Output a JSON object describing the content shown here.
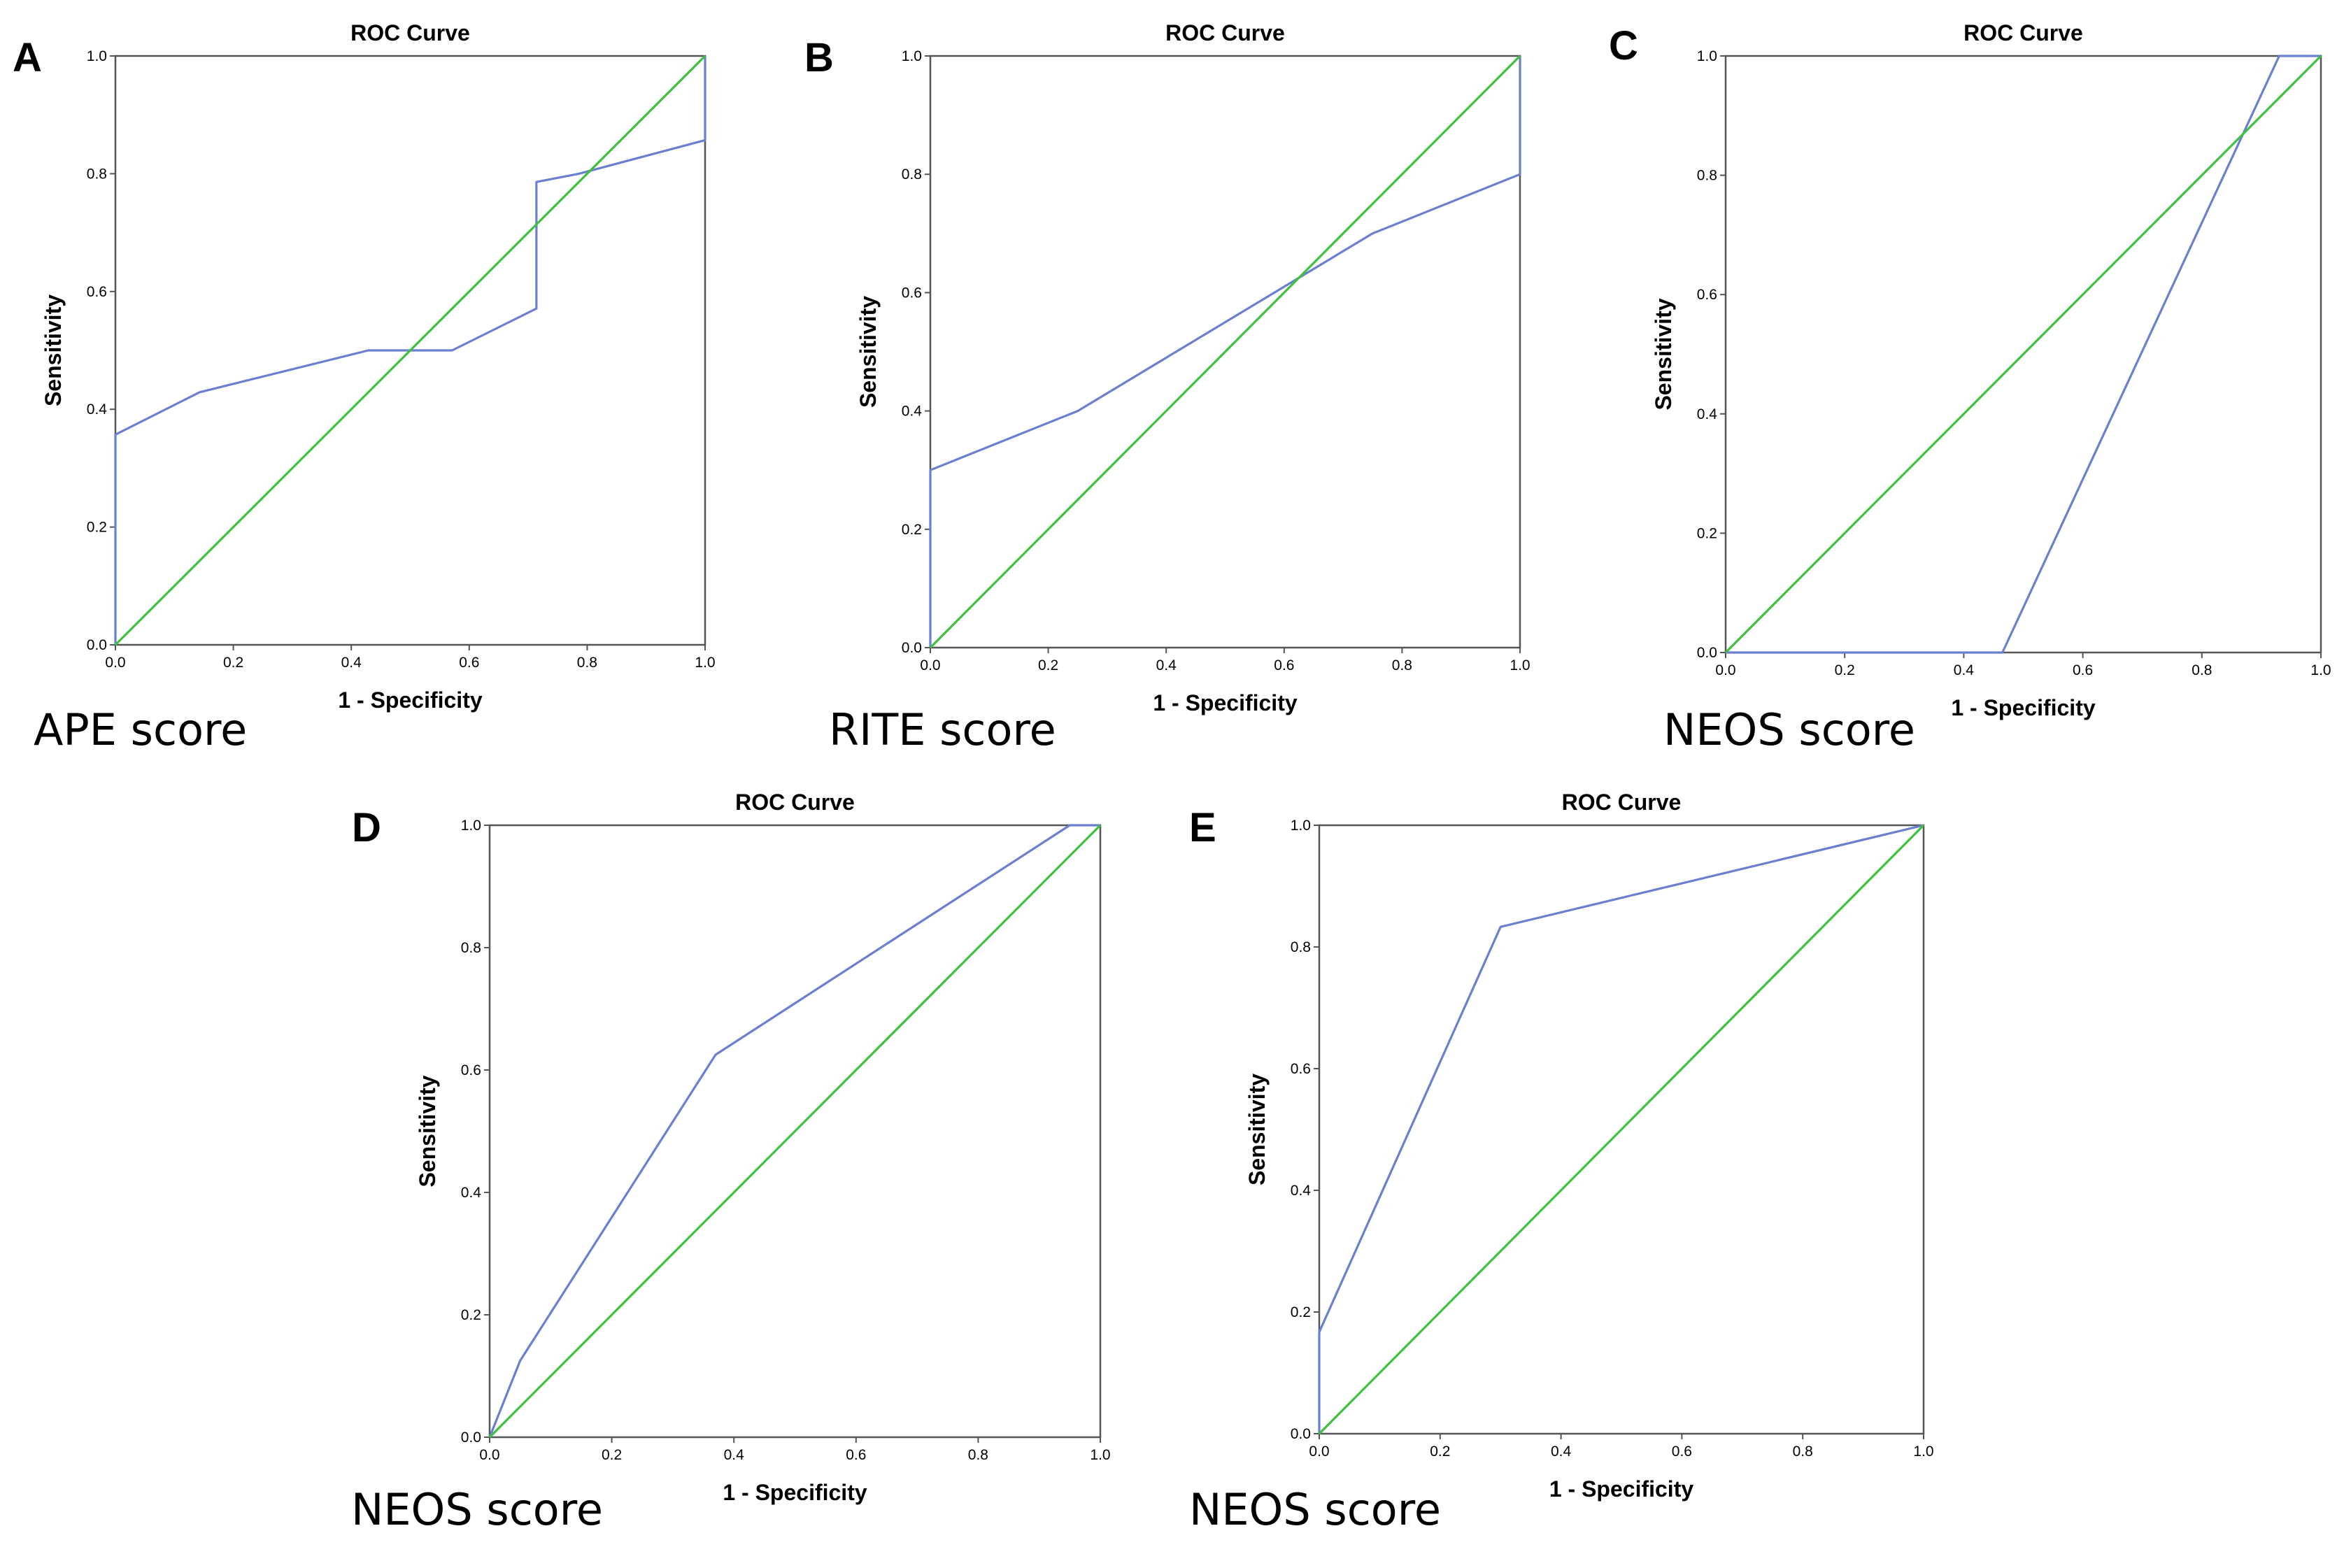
{
  "colors": {
    "roc_line": "#6b7fd0",
    "reference_line": "#3ec23e",
    "frame": "#555555"
  },
  "chart_data": [
    {
      "type": "line",
      "panel": "A",
      "title": "ROC Curve",
      "xlabel": "1 - Specificity",
      "ylabel": "Sensitivity",
      "caption": "APE score",
      "xlim": [
        0,
        1
      ],
      "ylim": [
        0,
        1
      ],
      "ticks": [
        "0.0",
        "0.2",
        "0.4",
        "0.6",
        "0.8",
        "1.0"
      ],
      "series": [
        {
          "name": "ROC",
          "x": [
            0,
            0,
            0.143,
            0.429,
            0.571,
            0.714,
            0.714,
            0.786,
            1.0,
            1.0
          ],
          "y": [
            0,
            0.357,
            0.429,
            0.5,
            0.5,
            0.571,
            0.786,
            0.8,
            0.857,
            1.0
          ]
        },
        {
          "name": "Reference",
          "x": [
            0,
            1
          ],
          "y": [
            0,
            1
          ]
        }
      ]
    },
    {
      "type": "line",
      "panel": "B",
      "title": "ROC Curve",
      "xlabel": "1 - Specificity",
      "ylabel": "Sensitivity",
      "caption": "RITE score",
      "xlim": [
        0,
        1
      ],
      "ylim": [
        0,
        1
      ],
      "ticks": [
        "0.0",
        "0.2",
        "0.4",
        "0.6",
        "0.8",
        "1.0"
      ],
      "series": [
        {
          "name": "ROC",
          "x": [
            0,
            0,
            0.25,
            0.75,
            1.0,
            1.0
          ],
          "y": [
            0,
            0.3,
            0.4,
            0.7,
            0.8,
            1.0
          ]
        },
        {
          "name": "Reference",
          "x": [
            0,
            1
          ],
          "y": [
            0,
            1
          ]
        }
      ]
    },
    {
      "type": "line",
      "panel": "C",
      "title": "ROC Curve",
      "xlabel": "1 - Specificity",
      "ylabel": "Sensitivity",
      "caption": "NEOS score",
      "xlim": [
        0,
        1
      ],
      "ylim": [
        0,
        1
      ],
      "ticks": [
        "0.0",
        "0.2",
        "0.4",
        "0.6",
        "0.8",
        "1.0"
      ],
      "series": [
        {
          "name": "ROC",
          "x": [
            0,
            0.465,
            0.93,
            1.0
          ],
          "y": [
            0,
            0,
            1.0,
            1.0
          ]
        },
        {
          "name": "Reference",
          "x": [
            0,
            1
          ],
          "y": [
            0,
            1
          ]
        }
      ]
    },
    {
      "type": "line",
      "panel": "D",
      "title": "ROC Curve",
      "xlabel": "1 - Specificity",
      "ylabel": "Sensitivity",
      "caption": "NEOS score",
      "xlim": [
        0,
        1
      ],
      "ylim": [
        0,
        1
      ],
      "ticks": [
        "0.0",
        "0.2",
        "0.4",
        "0.6",
        "0.8",
        "1.0"
      ],
      "series": [
        {
          "name": "ROC",
          "x": [
            0,
            0.05,
            0.37,
            0.95,
            1.0
          ],
          "y": [
            0,
            0.125,
            0.625,
            1.0,
            1.0
          ]
        },
        {
          "name": "Reference",
          "x": [
            0,
            1
          ],
          "y": [
            0,
            1
          ]
        }
      ]
    },
    {
      "type": "line",
      "panel": "E",
      "title": "ROC Curve",
      "xlabel": "1 - Specificity",
      "ylabel": "Sensitivity",
      "caption": "NEOS score",
      "xlim": [
        0,
        1
      ],
      "ylim": [
        0,
        1
      ],
      "ticks": [
        "0.0",
        "0.2",
        "0.4",
        "0.6",
        "0.8",
        "1.0"
      ],
      "series": [
        {
          "name": "ROC",
          "x": [
            0,
            0,
            0.3,
            1.0
          ],
          "y": [
            0,
            0.167,
            0.833,
            1.0
          ]
        },
        {
          "name": "Reference",
          "x": [
            0,
            1
          ],
          "y": [
            0,
            1
          ]
        }
      ]
    }
  ]
}
